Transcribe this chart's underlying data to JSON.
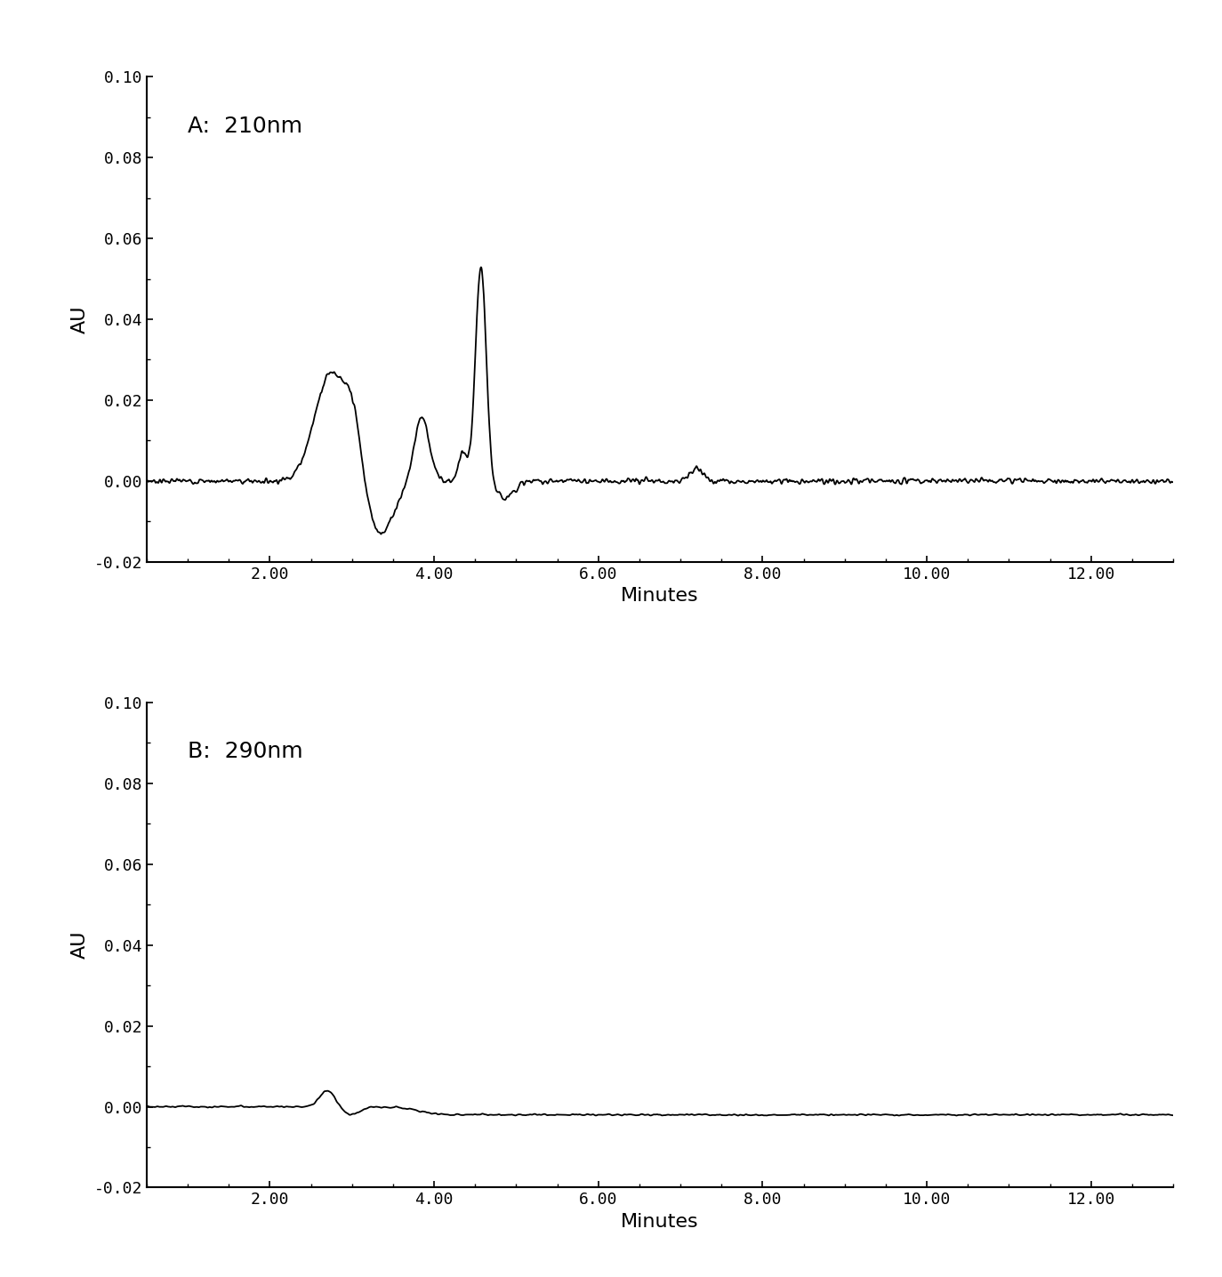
{
  "panel_A_label": "A:  210nm",
  "panel_B_label": "B:  290nm",
  "xlabel": "Minutes",
  "ylabel": "AU",
  "xlim": [
    0.5,
    13.0
  ],
  "ylim": [
    -0.02,
    0.1
  ],
  "xticks": [
    2.0,
    4.0,
    6.0,
    8.0,
    10.0,
    12.0
  ],
  "xtick_labels": [
    "2.00",
    "4.00",
    "6.00",
    "8.00",
    "10.00",
    "12.00"
  ],
  "yticks": [
    -0.02,
    0.0,
    0.02,
    0.04,
    0.06,
    0.08,
    0.1
  ],
  "ytick_labels": [
    "-0.02",
    "0.00",
    "0.02",
    "0.04",
    "0.06",
    "0.08",
    "0.10"
  ],
  "line_color": "#000000",
  "line_width": 1.3,
  "background_color": "#ffffff",
  "label_fontsize": 16,
  "tick_fontsize": 13
}
